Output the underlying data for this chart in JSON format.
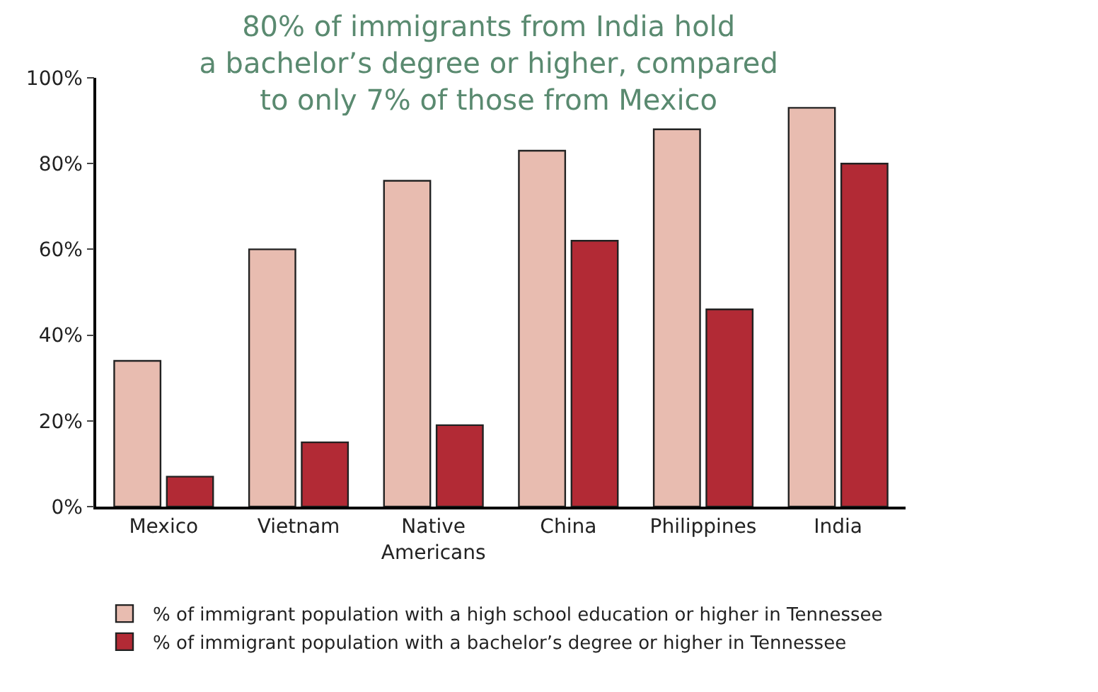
{
  "chart_data": {
    "type": "bar",
    "title": "80% of immigrants from India hold\na bachelor’s degree or higher, compared\nto only 7% of those from Mexico",
    "categories": [
      "Mexico",
      "Vietnam",
      "Native Americans",
      "China",
      "Philippines",
      "India"
    ],
    "series": [
      {
        "name": "% of immigrant population with a high school education or higher in Tennessee",
        "color": "#e8bcb0",
        "values": [
          34,
          60,
          76,
          83,
          88,
          93
        ]
      },
      {
        "name": "% of immigrant population with a bachelor’s degree or higher in Tennessee",
        "color": "#b22a35",
        "values": [
          7,
          15,
          19,
          62,
          46,
          80
        ]
      }
    ],
    "ylim": [
      0,
      100
    ],
    "yticks": [
      {
        "value": 0,
        "label": "0%"
      },
      {
        "value": 20,
        "label": "20%"
      },
      {
        "value": 40,
        "label": "40%"
      },
      {
        "value": 60,
        "label": "60%"
      },
      {
        "value": 80,
        "label": "80%"
      },
      {
        "value": 100,
        "label": "100%"
      }
    ],
    "legend": "bottom"
  }
}
